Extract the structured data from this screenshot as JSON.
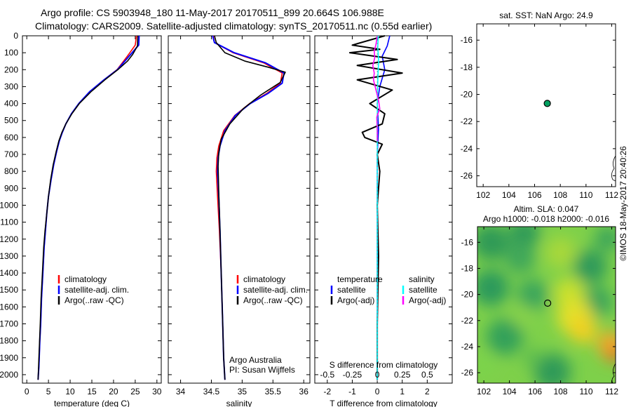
{
  "header": {
    "line1": "Argo profile: CS 5903948_180 11-May-2017 20170511_899 20.664S 106.988E",
    "line2": "Climatology: CARS2009. Satellite-adjusted climatology: synTS_20170511.nc (0.55d earlier)"
  },
  "colors": {
    "climatology": "#ff0000",
    "satellite": "#0000ff",
    "argo": "#000000",
    "salinity_satellite": "#00ffff",
    "salinity_argo": "#ff00ff",
    "marker": "#00a060"
  },
  "chart_data": [
    {
      "type": "line",
      "panel": "temperature",
      "xlabel": "temperature (deg C)",
      "ylabel": "",
      "xlim": [
        -1,
        31
      ],
      "ylim": [
        2050,
        0
      ],
      "xticks": [
        0,
        5,
        10,
        15,
        20,
        25,
        30
      ],
      "yticks": [
        0,
        100,
        200,
        300,
        400,
        500,
        600,
        700,
        800,
        900,
        1000,
        1100,
        1200,
        1300,
        1400,
        1500,
        1600,
        1700,
        1800,
        1900,
        2000
      ],
      "legend": [
        "climatology",
        "satellite-adj. clim.",
        "Argo(..raw -QC)"
      ],
      "series": [
        {
          "name": "climatology",
          "color": "#ff0000",
          "x": [
            25.3,
            25.0,
            23.2,
            20.8,
            17.8,
            14.5,
            12.0,
            10.3,
            9.0,
            8.2,
            7.5,
            6.9,
            6.2,
            5.6,
            5.0,
            4.6,
            4.3,
            4.0,
            3.7,
            3.4,
            3.2,
            3.0,
            2.8,
            2.6
          ],
          "y": [
            0,
            55,
            120,
            200,
            260,
            330,
            400,
            460,
            520,
            570,
            620,
            680,
            760,
            850,
            950,
            1050,
            1150,
            1250,
            1400,
            1550,
            1700,
            1800,
            1950,
            2030
          ]
        },
        {
          "name": "satellite-adj. clim.",
          "color": "#0000ff",
          "x": [
            25.9,
            25.8,
            23.6,
            20.9,
            17.8,
            14.5,
            12.0,
            10.3,
            9.0,
            8.2,
            7.5,
            6.9,
            6.2,
            5.6,
            5.0,
            4.6,
            4.3,
            4.0,
            3.7,
            3.4,
            3.2,
            3.0,
            2.8,
            2.6
          ],
          "y": [
            0,
            55,
            120,
            200,
            260,
            330,
            400,
            460,
            520,
            570,
            620,
            680,
            760,
            850,
            950,
            1050,
            1150,
            1250,
            1400,
            1550,
            1700,
            1800,
            1950,
            2030
          ]
        },
        {
          "name": "Argo(..raw -QC)",
          "color": "#000000",
          "x": [
            25.6,
            25.5,
            24.4,
            23.2,
            21.0,
            18.0,
            14.8,
            12.1,
            10.4,
            9.0,
            8.1,
            7.4,
            6.8,
            6.1,
            5.5,
            5.0,
            4.6,
            4.2,
            3.9,
            3.6,
            3.3,
            3.1,
            2.8,
            2.6
          ],
          "y": [
            0,
            60,
            110,
            150,
            200,
            260,
            330,
            400,
            460,
            520,
            570,
            620,
            680,
            760,
            850,
            950,
            1050,
            1150,
            1250,
            1400,
            1550,
            1700,
            1900,
            2030
          ]
        }
      ]
    },
    {
      "type": "line",
      "panel": "salinity",
      "xlabel": "salinity",
      "ylabel": "",
      "xlim": [
        33.8,
        36.1
      ],
      "ylim": [
        2050,
        0
      ],
      "xticks": [
        34,
        34.5,
        35,
        35.5,
        36
      ],
      "legend": [
        "climatology",
        "satellite-adj. clim.",
        "Argo(..raw -QC)"
      ],
      "annotation_1": "Argo Australia",
      "annotation_2": "PI: Susan Wijffels",
      "series": [
        {
          "name": "climatology",
          "color": "#ff0000",
          "x": [
            34.53,
            34.55,
            34.85,
            35.35,
            35.65,
            35.62,
            35.4,
            35.12,
            34.88,
            34.7,
            34.62,
            34.59,
            34.58,
            34.6,
            34.63,
            34.66,
            34.68,
            34.7,
            34.72
          ],
          "y": [
            0,
            40,
            100,
            160,
            220,
            280,
            340,
            400,
            470,
            560,
            650,
            720,
            800,
            950,
            1150,
            1400,
            1650,
            1900,
            2030
          ]
        },
        {
          "name": "satellite-adj. clim.",
          "color": "#0000ff",
          "x": [
            34.52,
            34.55,
            34.87,
            35.38,
            35.68,
            35.65,
            35.42,
            35.13,
            34.89,
            34.72,
            34.64,
            34.61,
            34.6,
            34.62,
            34.64,
            34.66,
            34.68,
            34.7,
            34.72
          ],
          "y": [
            0,
            40,
            100,
            160,
            220,
            280,
            340,
            400,
            470,
            560,
            650,
            720,
            800,
            950,
            1150,
            1400,
            1650,
            1900,
            2030
          ]
        },
        {
          "name": "Argo(..raw -QC)",
          "color": "#000000",
          "x": [
            34.55,
            34.58,
            34.72,
            35.05,
            35.42,
            35.7,
            35.62,
            35.3,
            35.02,
            34.8,
            34.66,
            34.62,
            34.61,
            34.62,
            34.64,
            34.66,
            34.68,
            34.7,
            34.72
          ],
          "y": [
            0,
            40,
            100,
            150,
            185,
            215,
            275,
            350,
            430,
            520,
            610,
            690,
            770,
            920,
            1150,
            1400,
            1650,
            1900,
            2030
          ]
        }
      ]
    },
    {
      "type": "line",
      "panel": "difference",
      "xlabel": "T difference from climatology",
      "xlabel_top": "S difference from climatology",
      "xlim": [
        -2.5,
        3.0
      ],
      "ylim": [
        2050,
        0
      ],
      "xticks": [
        -2,
        -1,
        0,
        1,
        2
      ],
      "xticks_s": [
        -0.5,
        -0.25,
        0,
        0.25,
        0.5
      ],
      "xticks_s_labels": [
        "-0.5",
        "-0.25",
        "0",
        "0.25",
        "0.5"
      ],
      "legend_temperature_title": "temperature",
      "legend_salinity_title": "salinity",
      "legend_temperature": [
        "satellite",
        "Argo(-adj)"
      ],
      "legend_salinity": [
        "satellite",
        "Argo(-adj)"
      ],
      "series": [
        {
          "name": "temperature satellite",
          "color": "#0000ff",
          "x": [
            0.5,
            0.4,
            0.2,
            0.3,
            0.1,
            0.0,
            0.05,
            0.0,
            0.0,
            0.0,
            0.0
          ],
          "y": [
            0,
            60,
            120,
            200,
            300,
            400,
            550,
            700,
            1000,
            1500,
            2030
          ]
        },
        {
          "name": "temperature Argo(-adj)",
          "color": "#000000",
          "x": [
            0.3,
            -1.0,
            0.1,
            -1.1,
            0.8,
            -0.8,
            1.0,
            -0.8,
            0.6,
            -0.3,
            0.3,
            0.2,
            -0.6,
            -0.5,
            0.2,
            0.0,
            0.1,
            0.0,
            0.05,
            0.0,
            0.0
          ],
          "y": [
            0,
            55,
            80,
            100,
            140,
            175,
            220,
            260,
            320,
            400,
            460,
            520,
            570,
            600,
            640,
            700,
            800,
            1000,
            1300,
            1700,
            2030
          ]
        },
        {
          "name": "salinity satellite",
          "color": "#00ffff",
          "x": [
            0.04,
            0.02,
            0.06,
            0.03,
            0.01,
            0.0,
            0.0,
            0.0
          ],
          "y": [
            0,
            70,
            150,
            220,
            320,
            500,
            900,
            2030
          ]
        },
        {
          "name": "salinity Argo(-adj)",
          "color": "#ff00ff",
          "x": [
            0.0,
            -0.05,
            -0.12,
            -0.1,
            -0.18,
            -0.12,
            -0.15,
            -0.05,
            0.05,
            0.1,
            -0.02,
            0.0,
            0.0
          ],
          "y": [
            0,
            50,
            90,
            130,
            175,
            220,
            260,
            320,
            380,
            430,
            480,
            560,
            620
          ]
        }
      ]
    },
    {
      "type": "scatter",
      "panel": "sst_map",
      "title": "sat. SST: NaN Argo: 24.9",
      "xlim": [
        101.5,
        112.3
      ],
      "ylim": [
        -26.8,
        -14.8
      ],
      "xticks": [
        102,
        104,
        106,
        108,
        110,
        112
      ],
      "yticks": [
        -16,
        -18,
        -20,
        -22,
        -24,
        -26
      ],
      "points": [
        {
          "lon": 106.988,
          "lat": -20.664
        }
      ]
    },
    {
      "type": "heatmap",
      "panel": "sla_map",
      "title_1": "Altim. SLA: 0.047",
      "title_2": "Argo h1000: -0.018 h2000: -0.016",
      "xlim": [
        101.5,
        112.3
      ],
      "ylim": [
        -26.8,
        -14.8
      ],
      "xticks": [
        102,
        104,
        106,
        108,
        110,
        112
      ],
      "yticks": [
        -16,
        -18,
        -20,
        -22,
        -24,
        -26
      ],
      "points": [
        {
          "lon": 106.988,
          "lat": -20.664
        }
      ]
    }
  ],
  "credit": "©IMOS 18-May-2017 20:40:26"
}
